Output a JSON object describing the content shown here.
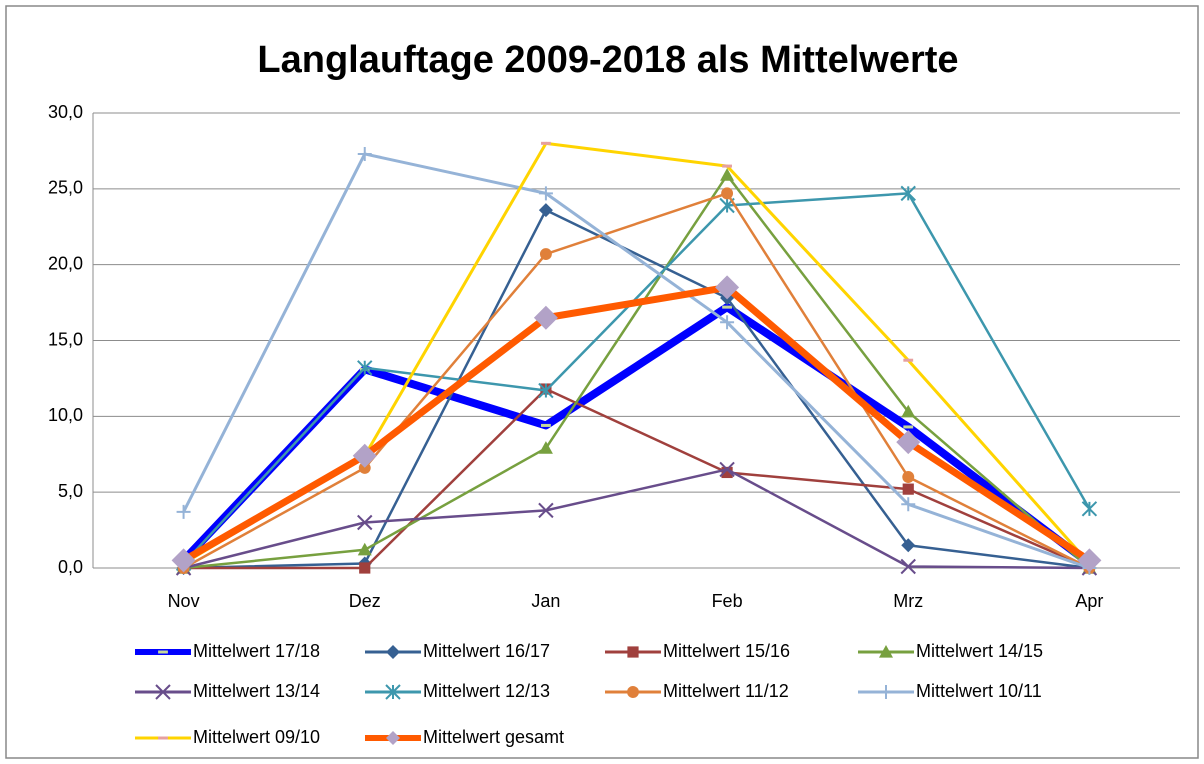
{
  "chart_data": {
    "type": "line",
    "title": "Langlauftage 2009-2018 als Mittelwerte",
    "categories": [
      "Nov",
      "Dez",
      "Jan",
      "Feb",
      "Mrz",
      "Apr"
    ],
    "ylim": [
      0,
      30
    ],
    "yticks": [
      {
        "value": 0,
        "label": "0,0"
      },
      {
        "value": 5,
        "label": "5,0"
      },
      {
        "value": 10,
        "label": "10,0"
      },
      {
        "value": 15,
        "label": "15,0"
      },
      {
        "value": 20,
        "label": "20,0"
      },
      {
        "value": 25,
        "label": "25,0"
      },
      {
        "value": 30,
        "label": "30,0"
      }
    ],
    "grid": true,
    "legend": "bottom",
    "series": [
      {
        "name": "Mittelwert 17/18",
        "color": "#0000ff",
        "marker": "dash",
        "marker_color": "#c4d79b",
        "line_width": 8,
        "values": [
          0.5,
          13.1,
          9.4,
          17.2,
          9.3,
          0.3
        ]
      },
      {
        "name": "Mittelwert 16/17",
        "color": "#366092",
        "marker": "diamond",
        "marker_color": "#366092",
        "line_width": 2.5,
        "values": [
          0,
          0.3,
          23.6,
          17.8,
          1.5,
          0
        ]
      },
      {
        "name": "Mittelwert 15/16",
        "color": "#a0403d",
        "marker": "square",
        "marker_color": "#a0403d",
        "line_width": 2.5,
        "values": [
          0,
          0,
          11.8,
          6.3,
          5.2,
          0
        ]
      },
      {
        "name": "Mittelwert 14/15",
        "color": "#77a03f",
        "marker": "triangle",
        "marker_color": "#77a03f",
        "line_width": 2.5,
        "values": [
          0,
          1.2,
          7.9,
          25.9,
          10.3,
          0
        ]
      },
      {
        "name": "Mittelwert 13/14",
        "color": "#684d8b",
        "marker": "x",
        "marker_color": "#684d8b",
        "line_width": 2.5,
        "values": [
          0,
          3.0,
          3.8,
          6.5,
          0.1,
          0
        ]
      },
      {
        "name": "Mittelwert 12/13",
        "color": "#3d97ad",
        "marker": "star",
        "marker_color": "#3d97ad",
        "line_width": 2.5,
        "values": [
          0.3,
          13.2,
          11.7,
          23.9,
          24.7,
          3.9
        ]
      },
      {
        "name": "Mittelwert 11/12",
        "color": "#e0803a",
        "marker": "circle",
        "marker_color": "#e0803a",
        "line_width": 2.5,
        "values": [
          0,
          6.6,
          20.7,
          24.7,
          6.0,
          0
        ]
      },
      {
        "name": "Mittelwert 10/11",
        "color": "#95b3d7",
        "marker": "plus",
        "marker_color": "#95b3d7",
        "line_width": 3,
        "values": [
          3.7,
          27.3,
          24.7,
          16.2,
          4.2,
          0
        ]
      },
      {
        "name": "Mittelwert 09/10",
        "color": "#ffd400",
        "marker": "dash",
        "marker_color": "#e6a0a0",
        "line_width": 3,
        "values": [
          0.3,
          7.4,
          28.0,
          26.5,
          13.7,
          0.3
        ]
      },
      {
        "name": "Mittelwert gesamt",
        "color": "#ff5a00",
        "marker": "diamond",
        "marker_color": "#b2a2c7",
        "line_width": 7,
        "values": [
          0.5,
          7.4,
          16.5,
          18.5,
          8.3,
          0.5
        ]
      }
    ]
  }
}
